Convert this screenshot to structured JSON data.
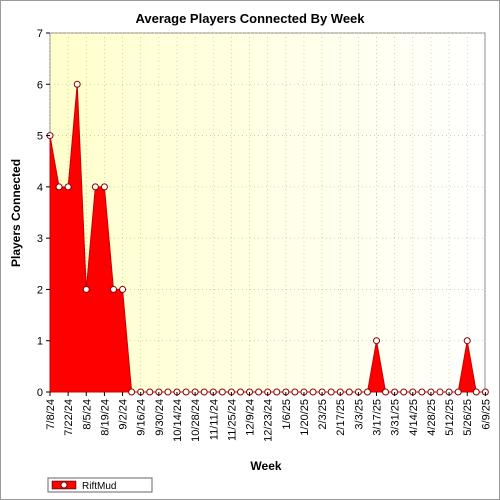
{
  "chart_data": {
    "type": "area",
    "title": "Average Players Connected By Week",
    "xlabel": "Week",
    "ylabel": "Players Connected",
    "ylim": [
      0,
      7
    ],
    "yticks": [
      0,
      1,
      2,
      3,
      4,
      5,
      6,
      7
    ],
    "grid": true,
    "legend_position": "bottom-left",
    "x_tick_labels": [
      "7/8/24",
      "7/22/24",
      "8/5/24",
      "8/19/24",
      "9/2/24",
      "9/16/24",
      "9/30/24",
      "10/14/24",
      "10/28/24",
      "11/11/24",
      "11/25/24",
      "12/9/24",
      "12/23/24",
      "1/6/25",
      "1/20/25",
      "2/3/25",
      "2/17/25",
      "3/3/25",
      "3/17/25",
      "3/31/25",
      "4/14/25",
      "4/28/25",
      "5/12/25",
      "5/26/25",
      "6/9/25"
    ],
    "x": [
      "7/8/24",
      "7/15/24",
      "7/22/24",
      "7/29/24",
      "8/5/24",
      "8/12/24",
      "8/19/24",
      "8/26/24",
      "9/2/24",
      "9/9/24",
      "9/16/24",
      "9/23/24",
      "9/30/24",
      "10/7/24",
      "10/14/24",
      "10/21/24",
      "10/28/24",
      "11/4/24",
      "11/11/24",
      "11/18/24",
      "11/25/24",
      "12/2/24",
      "12/9/24",
      "12/16/24",
      "12/23/24",
      "12/30/24",
      "1/6/25",
      "1/13/25",
      "1/20/25",
      "1/27/25",
      "2/3/25",
      "2/10/25",
      "2/17/25",
      "2/24/25",
      "3/3/25",
      "3/10/25",
      "3/17/25",
      "3/24/25",
      "3/31/25",
      "4/7/25",
      "4/14/25",
      "4/21/25",
      "4/28/25",
      "5/5/25",
      "5/12/25",
      "5/19/25",
      "5/26/25",
      "6/2/25",
      "6/9/25"
    ],
    "series": [
      {
        "name": "RiftMud",
        "color": "#ff0000",
        "values": [
          5,
          4,
          4,
          6,
          2,
          4,
          4,
          2,
          2,
          0,
          0,
          0,
          0,
          0,
          0,
          0,
          0,
          0,
          0,
          0,
          0,
          0,
          0,
          0,
          0,
          0,
          0,
          0,
          0,
          0,
          0,
          0,
          0,
          0,
          0,
          0,
          1,
          0,
          0,
          0,
          0,
          0,
          0,
          0,
          0,
          0,
          1,
          0,
          0
        ]
      }
    ],
    "colors": {
      "plot_background_left": "#ffffcc",
      "plot_background_right": "#ffffff",
      "area_fill": "#ff0000",
      "marker_fill": "#ffffff",
      "marker_stroke": "#8b0000"
    }
  }
}
